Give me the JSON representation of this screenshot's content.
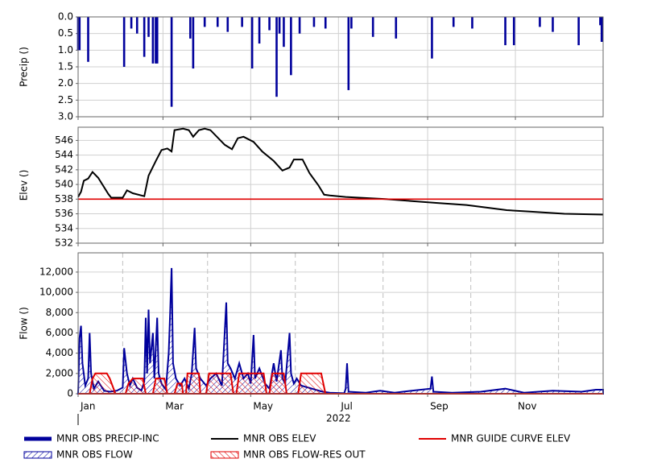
{
  "chart_data": [
    {
      "type": "bar",
      "ylabel": "Precip ()",
      "inverted": true,
      "xlim": [
        0,
        365
      ],
      "xticks": [
        0,
        59,
        120,
        181,
        243,
        304
      ],
      "ylim": [
        0,
        3
      ],
      "yticks": [
        {
          "value": 0,
          "label": "0.0"
        },
        {
          "value": 0.5,
          "label": "0.5"
        },
        {
          "value": 1,
          "label": "1.0"
        },
        {
          "value": 1.5,
          "label": "1.5"
        },
        {
          "value": 2,
          "label": "2.0"
        },
        {
          "value": 2.5,
          "label": "2.5"
        },
        {
          "value": 3,
          "label": "3.0"
        }
      ],
      "grid": true,
      "series": [
        {
          "name": "MNR OBS PRECIP-INC",
          "color": "#00009c",
          "x": [
            0,
            1,
            7,
            32,
            37,
            41,
            46,
            49,
            52,
            54,
            55,
            65,
            78,
            80,
            88,
            97,
            104,
            114,
            121,
            126,
            133,
            138,
            140,
            143,
            148,
            154,
            164,
            172,
            188,
            190,
            205,
            221,
            246,
            261,
            274,
            297,
            303,
            321,
            330,
            348,
            363,
            364
          ],
          "values": [
            1.0,
            1.0,
            1.35,
            1.5,
            0.35,
            0.5,
            1.2,
            0.6,
            1.4,
            1.4,
            1.4,
            2.7,
            0.65,
            1.55,
            0.3,
            0.3,
            0.45,
            0.3,
            1.55,
            0.8,
            0.4,
            2.4,
            0.5,
            0.9,
            1.75,
            0.5,
            0.3,
            0.35,
            2.2,
            0.35,
            0.6,
            0.65,
            1.25,
            0.3,
            0.35,
            0.85,
            0.85,
            0.3,
            0.45,
            0.85,
            0.25,
            0.75
          ]
        }
      ]
    },
    {
      "type": "line",
      "ylabel": "Elev ()",
      "xlim": [
        0,
        365
      ],
      "xticks": [
        0,
        59,
        120,
        181,
        243,
        304
      ],
      "ylim": [
        532,
        547.8
      ],
      "yticks": [
        532,
        534,
        536,
        538,
        540,
        542,
        544,
        546
      ],
      "grid": true,
      "series": [
        {
          "name": "MNR OBS ELEV",
          "color": "#000000",
          "x": [
            0,
            2,
            4,
            7,
            10,
            14,
            21,
            23,
            31,
            34,
            38,
            46,
            49,
            54,
            58,
            62,
            65,
            67,
            73,
            77,
            80,
            84,
            88,
            92,
            102,
            107,
            111,
            115,
            122,
            128,
            136,
            142,
            147,
            150,
            156,
            161,
            167,
            171,
            175,
            186,
            214,
            248,
            270,
            298,
            314,
            338,
            365
          ],
          "values": [
            538.3,
            539.0,
            540.5,
            540.8,
            541.7,
            540.9,
            538.7,
            538.2,
            538.2,
            539.2,
            538.8,
            538.4,
            541.2,
            543.2,
            544.7,
            544.9,
            544.5,
            547.4,
            547.6,
            547.4,
            546.5,
            547.4,
            547.6,
            547.4,
            545.4,
            544.8,
            546.3,
            546.5,
            545.8,
            544.5,
            543.2,
            541.9,
            542.3,
            543.4,
            543.4,
            541.5,
            539.9,
            538.6,
            538.5,
            538.3,
            538.0,
            537.5,
            537.2,
            536.5,
            536.3,
            536.0,
            535.9
          ]
        },
        {
          "name": "MNR GUIDE CURVE ELEV",
          "color": "#e00000",
          "x": [
            0,
            365
          ],
          "values": [
            538,
            538
          ]
        }
      ]
    },
    {
      "type": "area",
      "ylabel": "Flow ()",
      "xlabel": "2022",
      "xlim": [
        0,
        365
      ],
      "xticks": [
        {
          "value": 0,
          "label": "Jan"
        },
        {
          "value": 59,
          "label": "Mar"
        },
        {
          "value": 120,
          "label": "May"
        },
        {
          "value": 181,
          "label": "Jul"
        },
        {
          "value": 243,
          "label": "Sep"
        },
        {
          "value": 304,
          "label": "Nov"
        }
      ],
      "xticks_minor": [
        31,
        90,
        151,
        212,
        273,
        334
      ],
      "ylim": [
        0,
        13900
      ],
      "yticks": [
        0,
        {
          "value": 2000,
          "label": "2,000"
        },
        {
          "value": 4000,
          "label": "4,000"
        },
        {
          "value": 6000,
          "label": "6,000"
        },
        {
          "value": 8000,
          "label": "8,000"
        },
        {
          "value": 10000,
          "label": "10,000"
        },
        {
          "value": 12000,
          "label": "12,000"
        }
      ],
      "grid": true,
      "series": [
        {
          "name": "MNR OBS FLOW",
          "color": "#00009c",
          "x": [
            0,
            1,
            2,
            3,
            5,
            7,
            8,
            9,
            11,
            14,
            18,
            22,
            27,
            31,
            32,
            34,
            36,
            38,
            41,
            44,
            46,
            47,
            48,
            49,
            50,
            52,
            53,
            55,
            56,
            58,
            61,
            63,
            64,
            65,
            66,
            68,
            71,
            74,
            77,
            79,
            81,
            82,
            85,
            89,
            92,
            96,
            100,
            103,
            104,
            106,
            109,
            112,
            115,
            118,
            120,
            122,
            123,
            126,
            130,
            133,
            136,
            138,
            141,
            142,
            144,
            147,
            148,
            150,
            152,
            155,
            160,
            165,
            170,
            175,
            185,
            186,
            187,
            188,
            200,
            210,
            220,
            232,
            245,
            246,
            247,
            260,
            280,
            297,
            310,
            330,
            350,
            360,
            365
          ],
          "values": [
            0,
            5500,
            6700,
            3000,
            800,
            1500,
            6000,
            2000,
            500,
            1200,
            300,
            200,
            300,
            600,
            4500,
            2000,
            800,
            1500,
            600,
            300,
            1200,
            7500,
            2000,
            8300,
            3000,
            6000,
            1500,
            7500,
            2000,
            1000,
            400,
            4000,
            8000,
            12400,
            3000,
            1500,
            800,
            1500,
            500,
            2000,
            6500,
            2500,
            1500,
            800,
            1500,
            2000,
            800,
            9000,
            3000,
            2500,
            1500,
            3000,
            1500,
            2000,
            1000,
            5800,
            1500,
            2500,
            1000,
            500,
            3000,
            1200,
            4300,
            1500,
            1000,
            6000,
            2000,
            1000,
            1500,
            800,
            600,
            400,
            200,
            100,
            50,
            500,
            3000,
            200,
            100,
            300,
            100,
            300,
            500,
            1700,
            200,
            100,
            200,
            500,
            100,
            300,
            200,
            400,
            400
          ]
        },
        {
          "name": "MNR OBS FLOW-RES OUT",
          "color": "#e00000",
          "x": [
            0,
            8,
            10,
            12,
            20,
            22,
            26,
            33,
            35,
            38,
            45,
            47,
            52,
            54,
            60,
            62,
            67,
            69,
            72,
            73,
            75,
            76,
            84,
            85,
            89,
            91,
            106,
            108,
            110,
            112,
            129,
            131,
            133,
            135,
            143,
            145,
            153,
            155,
            169,
            172,
            365
          ],
          "values": [
            0,
            0,
            1500,
            2000,
            2000,
            1500,
            0,
            0,
            1000,
            1500,
            1500,
            0,
            0,
            1500,
            1500,
            0,
            0,
            1000,
            1000,
            0,
            0,
            2000,
            2000,
            0,
            0,
            2000,
            2000,
            0,
            0,
            2000,
            2000,
            0,
            0,
            2000,
            2000,
            0,
            0,
            2000,
            2000,
            0,
            0
          ]
        }
      ]
    }
  ]
}
